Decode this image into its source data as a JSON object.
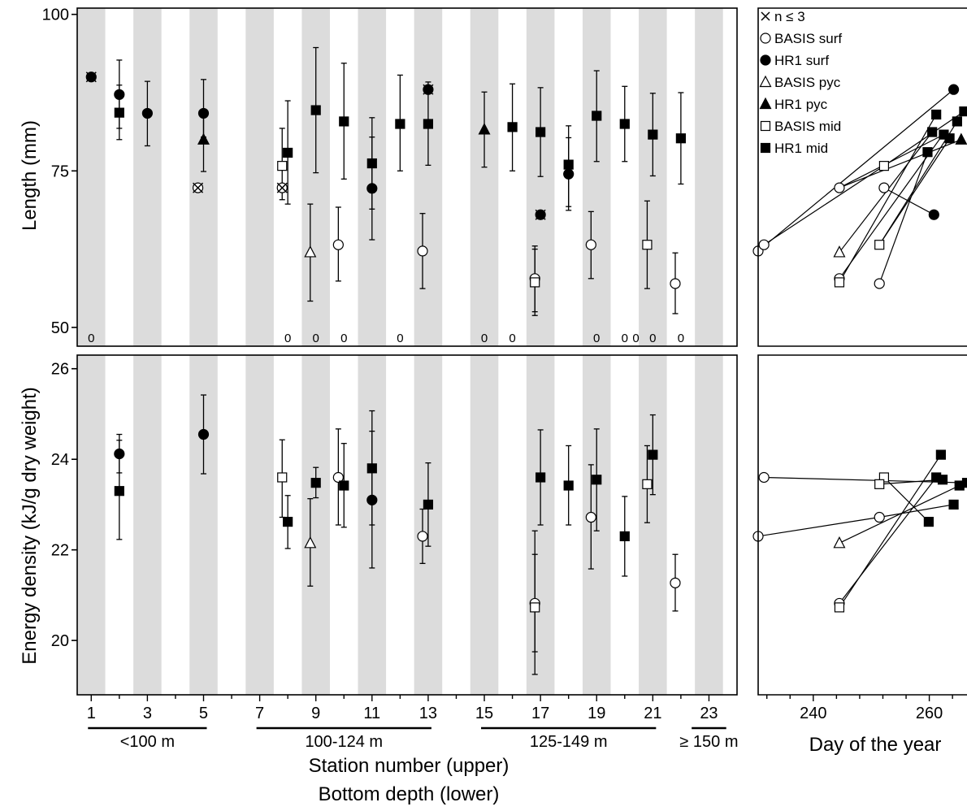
{
  "legend": {
    "items": [
      {
        "marker": "cross",
        "label": "n ≤ 3"
      },
      {
        "marker": "open-circle",
        "label": "BASIS surf"
      },
      {
        "marker": "filled-circle",
        "label": "HR1 surf"
      },
      {
        "marker": "open-triangle",
        "label": "BASIS pyc"
      },
      {
        "marker": "filled-triangle",
        "label": "HR1 pyc"
      },
      {
        "marker": "open-square",
        "label": "BASIS mid"
      },
      {
        "marker": "filled-square",
        "label": "HR1 mid"
      }
    ]
  },
  "labels": {
    "length_axis": "Length (mm)",
    "energy_axis": "Energy density (kJ/g dry weight)",
    "station_axis": "Station number (upper)",
    "depth_axis": "Bottom depth (lower)",
    "day_axis": "Day of the year"
  },
  "depth_bins": [
    {
      "label": "<100 m",
      "from": 1,
      "to": 5
    },
    {
      "label": "100-124 m",
      "from": 7,
      "to": 13
    },
    {
      "label": "125-149 m",
      "from": 15,
      "to": 21
    },
    {
      "label": "≥ 150 m",
      "from": 22.5,
      "to": 23.5
    }
  ],
  "chart_data": [
    {
      "type": "scatter",
      "panel": "length-by-station",
      "ylabel": "Length (mm)",
      "xlabel": "Station number (upper)",
      "ylim": [
        47,
        101
      ],
      "xlim": [
        0.5,
        24
      ],
      "y_ticks": [
        50,
        75,
        100
      ],
      "x_ticks": [
        1,
        3,
        5,
        7,
        9,
        11,
        13,
        15,
        17,
        19,
        21,
        23
      ],
      "shaded_stations": [
        1,
        3,
        5,
        7,
        9,
        11,
        13,
        15,
        17,
        19,
        21,
        23
      ],
      "zero_labels": {
        "text": "0",
        "stations": [
          1,
          8,
          9,
          10,
          12,
          15,
          16,
          19,
          20,
          20.4,
          21,
          22
        ]
      },
      "points": [
        {
          "series": "HR1 surf",
          "x": 1,
          "y": 90,
          "few": true
        },
        {
          "series": "HR1 surf",
          "x": 2,
          "y": 87.2,
          "lo": 81.8,
          "hi": 92.7
        },
        {
          "series": "HR1 mid",
          "x": 2,
          "y": 84.3,
          "lo": 80,
          "hi": 88.7
        },
        {
          "series": "HR1 surf",
          "x": 3,
          "y": 84.2,
          "lo": 79,
          "hi": 89.3
        },
        {
          "series": "HR1 surf",
          "x": 5,
          "y": 84.2,
          "lo": 80.4,
          "hi": 89.6
        },
        {
          "series": "HR1 pyc",
          "x": 5,
          "y": 80,
          "lo": 74.9,
          "hi": 84.7
        },
        {
          "series": "BASIS surf",
          "x": 4.8,
          "y": 72.3,
          "few": true
        },
        {
          "series": "BASIS mid",
          "x": 7.8,
          "y": 75.8,
          "lo": 70.4,
          "hi": 81.8
        },
        {
          "series": "BASIS surf",
          "x": 7.8,
          "y": 72.3,
          "few": true
        },
        {
          "series": "HR1 mid",
          "x": 8,
          "y": 77.9,
          "lo": 69.7,
          "hi": 86.2
        },
        {
          "series": "BASIS pyc",
          "x": 8.8,
          "y": 62,
          "lo": 54.2,
          "hi": 69.7
        },
        {
          "series": "HR1 mid",
          "x": 9,
          "y": 84.7,
          "lo": 74.7,
          "hi": 94.7
        },
        {
          "series": "BASIS surf",
          "x": 9.8,
          "y": 63.2,
          "lo": 57.4,
          "hi": 69.2
        },
        {
          "series": "HR1 mid",
          "x": 10,
          "y": 82.9,
          "lo": 73.7,
          "hi": 92.2
        },
        {
          "series": "HR1 mid",
          "x": 11,
          "y": 76.2,
          "lo": 68.9,
          "hi": 83.5
        },
        {
          "series": "HR1 surf",
          "x": 11,
          "y": 72.2,
          "lo": 64,
          "hi": 80.4
        },
        {
          "series": "HR1 mid",
          "x": 12,
          "y": 82.5,
          "lo": 75,
          "hi": 90.3
        },
        {
          "series": "HR1 surf",
          "x": 13,
          "y": 88,
          "few": true
        },
        {
          "series": "HR1 mid",
          "x": 13,
          "y": 82.5,
          "lo": 75.9,
          "hi": 89.2
        },
        {
          "series": "BASIS surf",
          "x": 12.8,
          "y": 62.2,
          "lo": 56.2,
          "hi": 68.2
        },
        {
          "series": "HR1 pyc",
          "x": 15,
          "y": 81.6,
          "lo": 75.6,
          "hi": 87.6
        },
        {
          "series": "HR1 mid",
          "x": 16,
          "y": 82,
          "lo": 75,
          "hi": 88.9
        },
        {
          "series": "HR1 mid",
          "x": 17,
          "y": 81.2,
          "lo": 74.1,
          "hi": 88.3
        },
        {
          "series": "HR1 surf",
          "x": 17,
          "y": 68,
          "few": true
        },
        {
          "series": "BASIS surf",
          "x": 16.8,
          "y": 57.8,
          "lo": 52.5,
          "hi": 63
        },
        {
          "series": "BASIS mid",
          "x": 16.8,
          "y": 57.2,
          "lo": 51.9,
          "hi": 62.5
        },
        {
          "series": "HR1 mid",
          "x": 18,
          "y": 76,
          "lo": 69.3,
          "hi": 82.2
        },
        {
          "series": "HR1 surf",
          "x": 18,
          "y": 74.5,
          "lo": 68.7,
          "hi": 80.3
        },
        {
          "series": "BASIS surf",
          "x": 18.8,
          "y": 63.2,
          "lo": 57.8,
          "hi": 68.5
        },
        {
          "series": "HR1 mid",
          "x": 19,
          "y": 83.8,
          "lo": 76.5,
          "hi": 91
        },
        {
          "series": "HR1 mid",
          "x": 20,
          "y": 82.5,
          "lo": 76.5,
          "hi": 88.5
        },
        {
          "series": "BASIS mid",
          "x": 20.8,
          "y": 63.2,
          "lo": 56.2,
          "hi": 70.2
        },
        {
          "series": "HR1 mid",
          "x": 21,
          "y": 80.8,
          "lo": 74.2,
          "hi": 87.4
        },
        {
          "series": "BASIS surf",
          "x": 21.8,
          "y": 57,
          "lo": 52.2,
          "hi": 61.9
        },
        {
          "series": "HR1 mid",
          "x": 22,
          "y": 80.2,
          "lo": 72.9,
          "hi": 87.5
        }
      ]
    },
    {
      "type": "scatter",
      "panel": "energy-by-station",
      "ylabel": "Energy density (kJ/g dry weight)",
      "xlabel": "Station number (upper)",
      "ylim": [
        18.8,
        26.3
      ],
      "xlim": [
        0.5,
        24
      ],
      "y_ticks": [
        20,
        22,
        24,
        26
      ],
      "x_ticks": [
        1,
        3,
        5,
        7,
        9,
        11,
        13,
        15,
        17,
        19,
        21,
        23
      ],
      "shaded_stations": [
        1,
        3,
        5,
        7,
        9,
        11,
        13,
        15,
        17,
        19,
        21,
        23
      ],
      "points": [
        {
          "series": "HR1 surf",
          "x": 2,
          "y": 24.12,
          "lo": 23.7,
          "hi": 24.55
        },
        {
          "series": "HR1 mid",
          "x": 2,
          "y": 23.3,
          "lo": 22.23,
          "hi": 24.42
        },
        {
          "series": "HR1 surf",
          "x": 5,
          "y": 24.55,
          "lo": 23.68,
          "hi": 25.42
        },
        {
          "series": "BASIS mid",
          "x": 7.8,
          "y": 23.6,
          "lo": 22.72,
          "hi": 24.43
        },
        {
          "series": "HR1 mid",
          "x": 8,
          "y": 22.62,
          "lo": 22.03,
          "hi": 23.2
        },
        {
          "series": "BASIS pyc",
          "x": 8.8,
          "y": 22.15,
          "lo": 21.2,
          "hi": 23.13
        },
        {
          "series": "HR1 mid",
          "x": 9,
          "y": 23.48,
          "lo": 23.15,
          "hi": 23.82
        },
        {
          "series": "BASIS surf",
          "x": 9.8,
          "y": 23.6,
          "lo": 22.55,
          "hi": 24.67
        },
        {
          "series": "HR1 mid",
          "x": 10,
          "y": 23.42,
          "lo": 22.5,
          "hi": 24.35
        },
        {
          "series": "HR1 mid",
          "x": 11,
          "y": 23.8,
          "lo": 22.55,
          "hi": 25.07
        },
        {
          "series": "HR1 surf",
          "x": 11,
          "y": 23.1,
          "lo": 21.6,
          "hi": 24.62
        },
        {
          "series": "BASIS surf",
          "x": 12.8,
          "y": 22.3,
          "lo": 21.7,
          "hi": 22.9
        },
        {
          "series": "HR1 mid",
          "x": 13,
          "y": 23,
          "lo": 22.08,
          "hi": 23.92
        },
        {
          "series": "BASIS surf",
          "x": 16.8,
          "y": 20.82,
          "lo": 19.75,
          "hi": 21.9
        },
        {
          "series": "BASIS mid",
          "x": 16.8,
          "y": 20.73,
          "lo": 19.25,
          "hi": 22.42
        },
        {
          "series": "HR1 mid",
          "x": 17,
          "y": 23.6,
          "lo": 22.55,
          "hi": 24.65
        },
        {
          "series": "HR1 mid",
          "x": 18,
          "y": 23.42,
          "lo": 22.55,
          "hi": 24.3
        },
        {
          "series": "BASIS surf",
          "x": 18.8,
          "y": 22.72,
          "lo": 21.58,
          "hi": 23.88
        },
        {
          "series": "HR1 mid",
          "x": 19,
          "y": 23.55,
          "lo": 22.42,
          "hi": 24.67
        },
        {
          "series": "HR1 mid",
          "x": 20,
          "y": 22.3,
          "lo": 21.42,
          "hi": 23.18
        },
        {
          "series": "BASIS mid",
          "x": 20.8,
          "y": 23.45,
          "lo": 22.6,
          "hi": 24.3
        },
        {
          "series": "HR1 mid",
          "x": 21,
          "y": 24.1,
          "lo": 23.22,
          "hi": 24.98
        },
        {
          "series": "BASIS surf",
          "x": 21.8,
          "y": 21.27,
          "lo": 20.65,
          "hi": 21.9
        }
      ]
    },
    {
      "type": "line",
      "panel": "length-by-day",
      "xlabel": "",
      "ylim": [
        47,
        101
      ],
      "xlim": [
        230.5,
        266.5
      ],
      "points": [
        {
          "series": "BASIS surf",
          "x": 230.5,
          "y": 62.2
        },
        {
          "series": "BASIS surf",
          "x": 231.5,
          "y": 63.2
        },
        {
          "series": "BASIS surf",
          "x": 244.5,
          "y": 72.3
        },
        {
          "series": "BASIS surf",
          "x": 252.2,
          "y": 72.3
        },
        {
          "series": "BASIS surf",
          "x": 244.5,
          "y": 57.8
        },
        {
          "series": "BASIS surf",
          "x": 251.4,
          "y": 57
        },
        {
          "series": "BASIS pyc",
          "x": 244.5,
          "y": 62
        },
        {
          "series": "BASIS mid",
          "x": 252.2,
          "y": 75.8
        },
        {
          "series": "BASIS mid",
          "x": 251.4,
          "y": 63.2
        },
        {
          "series": "BASIS mid",
          "x": 244.5,
          "y": 57.2
        },
        {
          "series": "HR1 surf",
          "x": 264.2,
          "y": 88
        },
        {
          "series": "HR1 surf",
          "x": 260.8,
          "y": 68
        },
        {
          "series": "HR1 mid",
          "x": 259.7,
          "y": 78
        },
        {
          "series": "HR1 mid",
          "x": 260.5,
          "y": 81.2
        },
        {
          "series": "HR1 mid",
          "x": 261.2,
          "y": 84
        },
        {
          "series": "HR1 mid",
          "x": 262.5,
          "y": 80.8
        },
        {
          "series": "HR1 mid",
          "x": 263.5,
          "y": 80.2
        },
        {
          "series": "HR1 mid",
          "x": 264.8,
          "y": 82.9
        },
        {
          "series": "HR1 mid",
          "x": 266,
          "y": 84.5
        },
        {
          "series": "HR1 pyc",
          "x": 265.5,
          "y": 80
        }
      ],
      "lines": [
        [
          [
            230.5,
            62.2
          ],
          [
            264.2,
            88
          ]
        ],
        [
          [
            231.5,
            63.2
          ],
          [
            252.2,
            75.8
          ]
        ],
        [
          [
            244.5,
            72.3
          ],
          [
            262.5,
            80.8
          ]
        ],
        [
          [
            244.5,
            72.3
          ],
          [
            265.5,
            80
          ]
        ],
        [
          [
            252.2,
            72.3
          ],
          [
            260.8,
            68
          ]
        ],
        [
          [
            251.4,
            57
          ],
          [
            259.7,
            78
          ]
        ],
        [
          [
            244.5,
            57.2
          ],
          [
            261.2,
            84
          ]
        ],
        [
          [
            244.5,
            57.8
          ],
          [
            262.5,
            81
          ]
        ],
        [
          [
            244.5,
            62
          ],
          [
            260.5,
            81.2
          ]
        ],
        [
          [
            251.4,
            63.2
          ],
          [
            264.8,
            82.9
          ]
        ],
        [
          [
            252.2,
            75.8
          ],
          [
            266,
            84.5
          ]
        ],
        [
          [
            251.4,
            63.2
          ],
          [
            263.5,
            80.2
          ]
        ]
      ]
    },
    {
      "type": "line",
      "panel": "energy-by-day",
      "xlabel": "Day of the year",
      "ylim": [
        18.8,
        26.3
      ],
      "xlim": [
        230.5,
        266.5
      ],
      "x_ticks": [
        240,
        260
      ],
      "points": [
        {
          "series": "BASIS surf",
          "x": 231.5,
          "y": 23.6
        },
        {
          "series": "BASIS surf",
          "x": 230.5,
          "y": 22.3
        },
        {
          "series": "BASIS surf",
          "x": 251.4,
          "y": 22.72
        },
        {
          "series": "BASIS surf",
          "x": 244.5,
          "y": 20.82
        },
        {
          "series": "BASIS pyc",
          "x": 244.5,
          "y": 22.15
        },
        {
          "series": "BASIS mid",
          "x": 252.2,
          "y": 23.6
        },
        {
          "series": "BASIS mid",
          "x": 251.4,
          "y": 23.45
        },
        {
          "series": "BASIS mid",
          "x": 244.5,
          "y": 20.73
        },
        {
          "series": "HR1 mid",
          "x": 262,
          "y": 24.1
        },
        {
          "series": "HR1 mid",
          "x": 261.2,
          "y": 23.6
        },
        {
          "series": "HR1 mid",
          "x": 262.3,
          "y": 23.55
        },
        {
          "series": "HR1 mid",
          "x": 259.9,
          "y": 22.62
        },
        {
          "series": "HR1 mid",
          "x": 264.2,
          "y": 23
        },
        {
          "series": "HR1 mid",
          "x": 265.2,
          "y": 23.42
        },
        {
          "series": "HR1 mid",
          "x": 266.5,
          "y": 23.48
        }
      ],
      "lines": [
        [
          [
            231.5,
            23.6
          ],
          [
            266.5,
            23.48
          ]
        ],
        [
          [
            230.5,
            22.3
          ],
          [
            251.4,
            22.72
          ]
        ],
        [
          [
            251.4,
            22.72
          ],
          [
            264.2,
            23
          ]
        ],
        [
          [
            251.4,
            23.45
          ],
          [
            262.3,
            23.55
          ]
        ],
        [
          [
            252.2,
            23.6
          ],
          [
            259.9,
            22.62
          ]
        ],
        [
          [
            244.5,
            22.15
          ],
          [
            265.2,
            23.42
          ]
        ],
        [
          [
            244.5,
            20.82
          ],
          [
            261.2,
            23.6
          ]
        ],
        [
          [
            244.5,
            20.73
          ],
          [
            262,
            24.1
          ]
        ]
      ]
    }
  ]
}
